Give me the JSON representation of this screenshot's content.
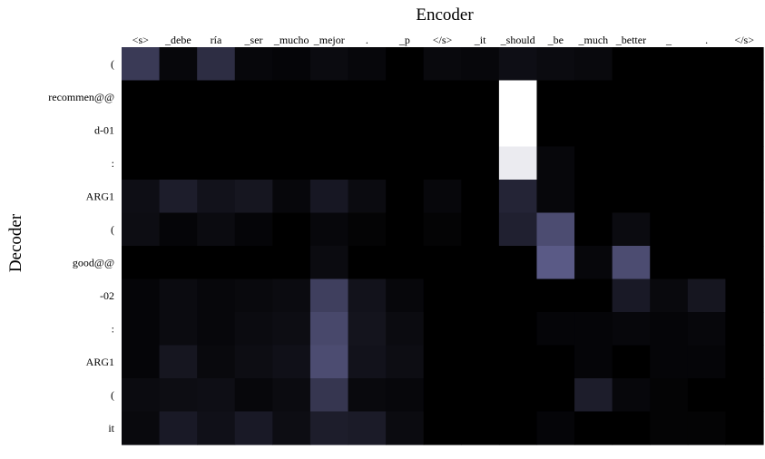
{
  "chart_data": {
    "type": "heatmap",
    "xlabel": "Encoder",
    "ylabel": "Decoder",
    "x_tick_labels": [
      "<s>",
      "_debe",
      "ría",
      "_ser",
      "_mucho",
      "_mejor",
      ".",
      "_p",
      "</s>",
      "_it",
      "_should",
      "_be",
      "_much",
      "_better",
      "_",
      ".",
      "</s>"
    ],
    "y_tick_labels": [
      "(",
      "recommen@@",
      "d-01",
      ":",
      "ARG1",
      "(",
      "good@@",
      "-02",
      ":",
      "ARG1",
      "(",
      "it"
    ],
    "value_range": [
      0,
      1
    ],
    "colormap": [
      "#000000",
      "#5a5a86",
      "#ffffff"
    ],
    "values": [
      [
        0.32,
        0.04,
        0.25,
        0.04,
        0.03,
        0.06,
        0.04,
        0.0,
        0.05,
        0.04,
        0.08,
        0.06,
        0.05,
        0.0,
        0.0,
        0.0,
        0.0
      ],
      [
        0.0,
        0.0,
        0.0,
        0.0,
        0.0,
        0.0,
        0.0,
        0.0,
        0.0,
        0.0,
        1.0,
        0.0,
        0.0,
        0.0,
        0.0,
        0.0,
        0.0
      ],
      [
        0.0,
        0.0,
        0.0,
        0.0,
        0.0,
        0.0,
        0.0,
        0.0,
        0.0,
        0.0,
        1.0,
        0.0,
        0.0,
        0.0,
        0.0,
        0.0,
        0.0
      ],
      [
        0.0,
        0.0,
        0.0,
        0.0,
        0.0,
        0.0,
        0.0,
        0.0,
        0.0,
        0.0,
        0.94,
        0.04,
        0.0,
        0.0,
        0.0,
        0.0,
        0.0
      ],
      [
        0.08,
        0.16,
        0.1,
        0.12,
        0.04,
        0.13,
        0.06,
        0.0,
        0.04,
        0.0,
        0.2,
        0.04,
        0.0,
        0.0,
        0.0,
        0.0,
        0.0
      ],
      [
        0.07,
        0.03,
        0.06,
        0.03,
        0.0,
        0.04,
        0.02,
        0.0,
        0.02,
        0.0,
        0.18,
        0.42,
        0.0,
        0.06,
        0.0,
        0.0,
        0.0
      ],
      [
        0.0,
        0.0,
        0.0,
        0.0,
        0.0,
        0.06,
        0.0,
        0.0,
        0.0,
        0.0,
        0.0,
        0.5,
        0.04,
        0.42,
        0.0,
        0.0,
        0.0
      ],
      [
        0.03,
        0.06,
        0.04,
        0.05,
        0.06,
        0.35,
        0.1,
        0.04,
        0.0,
        0.0,
        0.0,
        0.0,
        0.0,
        0.14,
        0.05,
        0.12,
        0.0
      ],
      [
        0.03,
        0.06,
        0.04,
        0.06,
        0.07,
        0.4,
        0.11,
        0.06,
        0.0,
        0.0,
        0.0,
        0.03,
        0.03,
        0.04,
        0.03,
        0.04,
        0.0
      ],
      [
        0.03,
        0.12,
        0.05,
        0.07,
        0.09,
        0.42,
        0.1,
        0.07,
        0.0,
        0.0,
        0.0,
        0.0,
        0.03,
        0.0,
        0.03,
        0.03,
        0.0
      ],
      [
        0.06,
        0.07,
        0.08,
        0.04,
        0.06,
        0.3,
        0.05,
        0.04,
        0.0,
        0.0,
        0.0,
        0.0,
        0.16,
        0.04,
        0.02,
        0.0,
        0.0
      ],
      [
        0.05,
        0.14,
        0.09,
        0.14,
        0.07,
        0.16,
        0.15,
        0.06,
        0.0,
        0.0,
        0.0,
        0.03,
        0.0,
        0.0,
        0.02,
        0.02,
        0.0
      ]
    ]
  }
}
